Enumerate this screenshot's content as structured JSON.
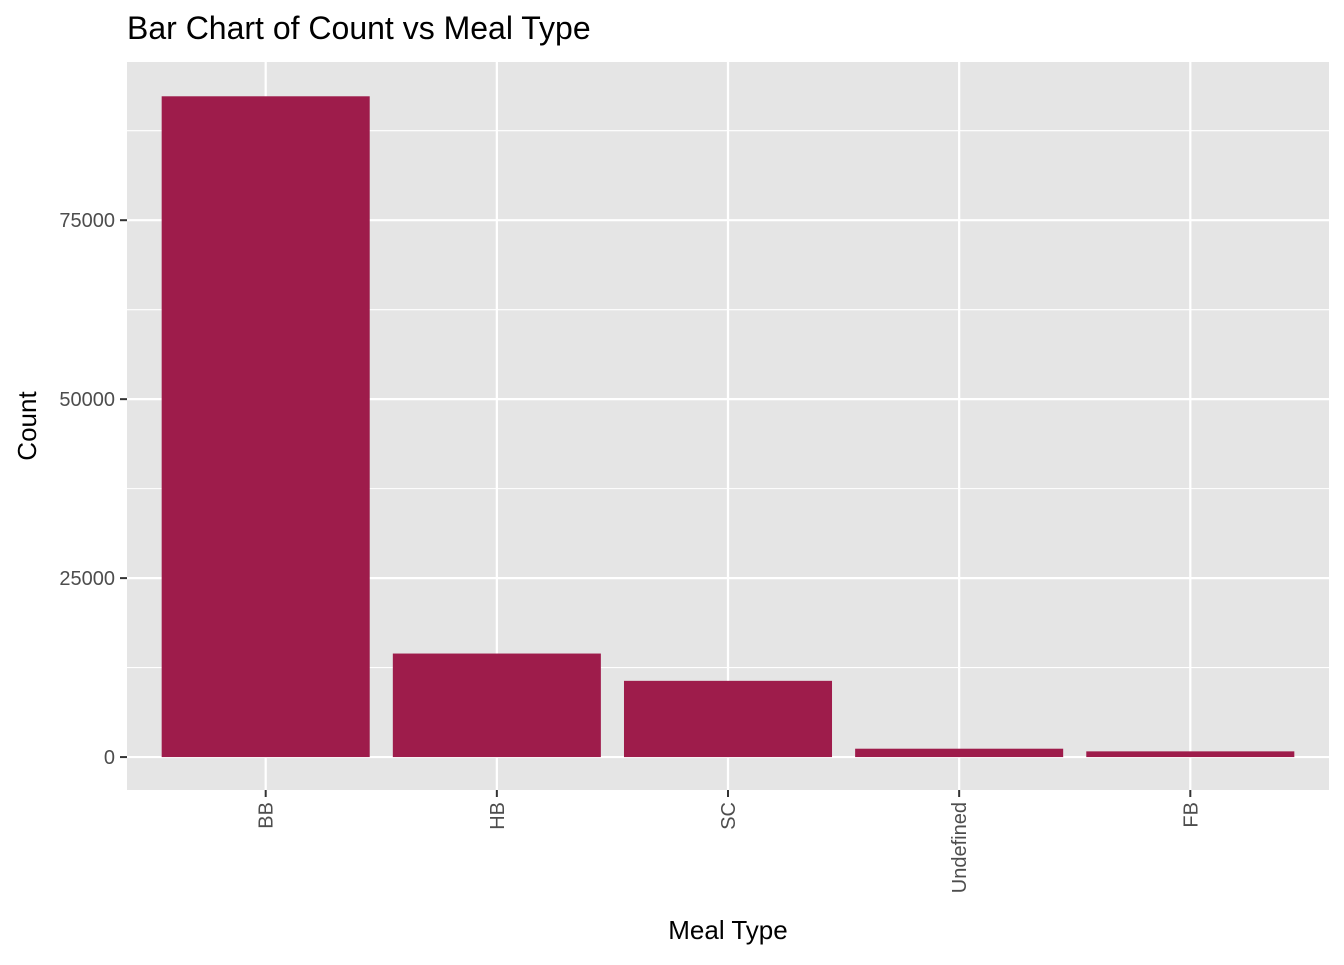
{
  "chart_data": {
    "type": "bar",
    "title": "Bar Chart of Count vs Meal Type",
    "xlabel": "Meal Type",
    "ylabel": "Count",
    "categories": [
      "BB",
      "HB",
      "SC",
      "Undefined",
      "FB"
    ],
    "values": [
      92310,
      14463,
      10650,
      1169,
      798
    ],
    "ylim": [
      -4600,
      97100
    ],
    "yticks": [
      0,
      25000,
      50000,
      75000
    ],
    "ytick_labels": [
      "0",
      "25000",
      "50000",
      "75000"
    ],
    "grid": true,
    "legend": "none",
    "colors": {
      "bar": "#9E1C4B",
      "panel_background": "#E5E5E5",
      "grid": "#FFFFFF",
      "tick_text": "#4D4D4D",
      "tick_mark": "#333333"
    }
  }
}
